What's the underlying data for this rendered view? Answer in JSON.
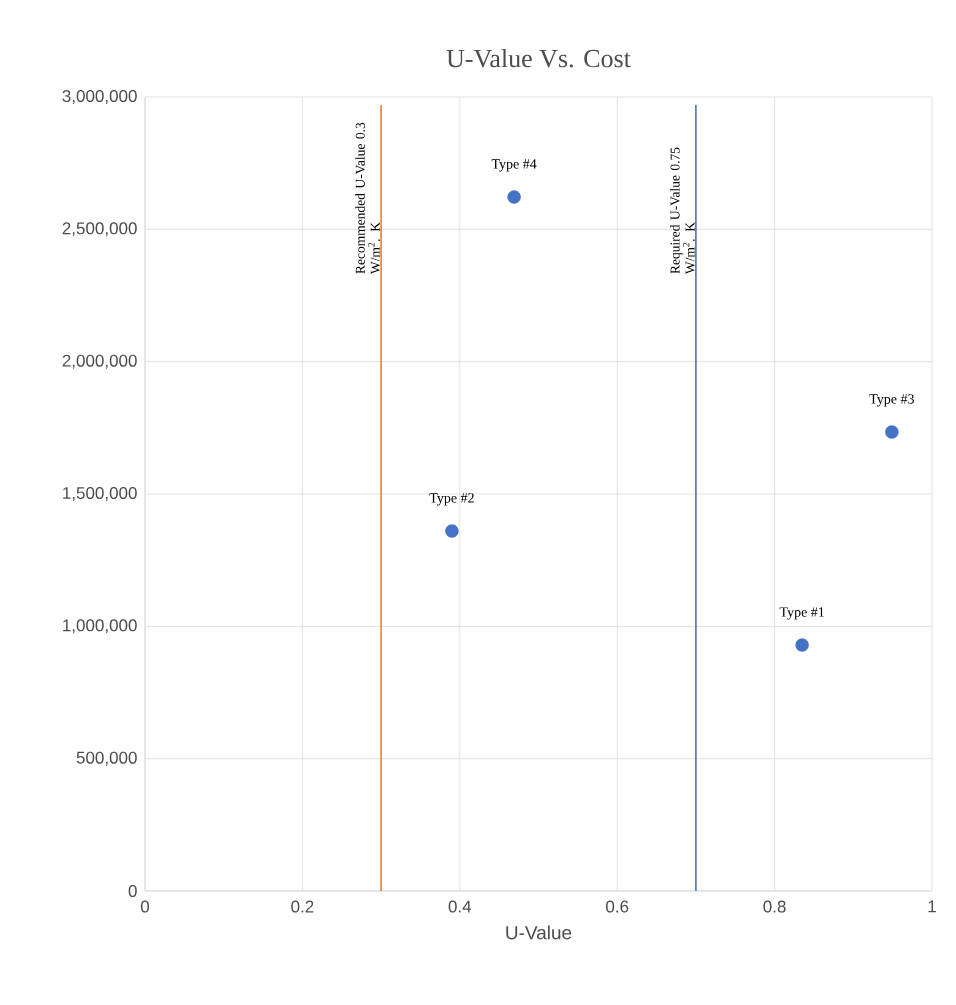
{
  "chart_data": {
    "type": "scatter",
    "title": "U-Value Vs. Cost",
    "xlabel": "U-Value",
    "x": [
      0.835,
      0.39,
      0.949,
      0.469
    ],
    "values": [
      929000,
      1360000,
      1734000,
      2622000
    ],
    "color": "#4472c4",
    "marker": "circle",
    "xlim": [
      0,
      1
    ],
    "xticks": [
      0,
      0.2,
      0.4,
      0.6,
      0.8,
      1
    ],
    "ylim": [
      0,
      3000000
    ],
    "yticks": [
      {
        "value": 0,
        "label": "0"
      },
      {
        "value": 500000,
        "label": "500,000"
      },
      {
        "value": 1000000,
        "label": "1,000,000"
      },
      {
        "value": 1500000,
        "label": "1,500,000"
      },
      {
        "value": 2000000,
        "label": "2,000,000"
      },
      {
        "value": 2500000,
        "label": "2,500,000"
      },
      {
        "value": 3000000,
        "label": "3,000,000"
      }
    ],
    "grid": true,
    "ref_lines": [
      {
        "axis": "x",
        "value": 0.3,
        "label": "Recommended U-Value 0.3 W/m$^{2}$. K",
        "color": "#ed7d31"
      },
      {
        "axis": "x",
        "value": 0.7,
        "label": "Required U-Value 0.75 W/m$^{2}$. K",
        "color": "#4472c4"
      }
    ],
    "annotations": [
      {
        "text": "Type #1",
        "x": 0.835,
        "y": 929000
      },
      {
        "text": "Type #2",
        "x": 0.39,
        "y": 1360000
      },
      {
        "text": "Type #3",
        "x": 0.949,
        "y": 1734000
      },
      {
        "text": "Type #4",
        "x": 0.469,
        "y": 2622000
      }
    ]
  }
}
